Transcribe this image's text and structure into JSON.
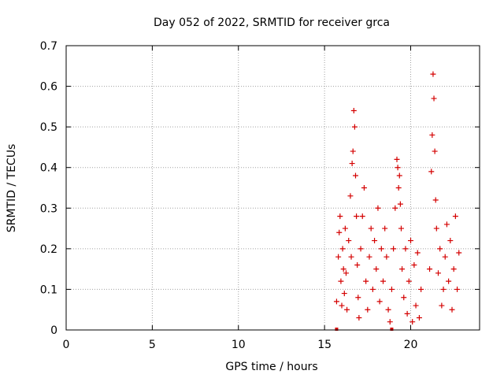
{
  "chart_data": {
    "type": "scatter",
    "title": "Day 052 of 2022, SRMTID for receiver grca",
    "xlabel": "GPS time / hours",
    "ylabel": "SRMTID / TECUs",
    "xlim": [
      0,
      24
    ],
    "ylim": [
      0,
      0.7
    ],
    "x_ticks": [
      "0",
      "5",
      "10",
      "15",
      "20"
    ],
    "y_ticks": [
      "0",
      "0.1",
      "0.2",
      "0.3",
      "0.4",
      "0.5",
      "0.6",
      "0.7"
    ],
    "grid": true,
    "marker": "plus",
    "color": "#d40000",
    "series": [
      {
        "x": [
          15.7,
          15.8,
          15.85,
          15.9,
          15.95,
          16.0,
          16.05,
          16.1,
          16.15,
          16.2,
          16.25,
          16.3,
          16.4,
          16.5,
          16.55,
          16.6,
          16.65,
          16.7,
          16.75,
          16.8,
          16.85,
          16.9,
          16.95,
          17.0,
          17.1,
          17.2,
          17.3,
          17.4,
          17.5,
          17.6,
          17.7,
          17.8,
          17.9,
          18.0,
          18.1,
          18.2,
          18.3,
          18.4,
          18.5,
          18.6,
          18.7,
          18.8,
          18.9,
          19.0,
          19.1,
          19.2,
          19.25,
          19.3,
          19.35,
          19.4,
          19.45,
          19.5,
          19.6,
          19.7,
          19.8,
          19.9,
          20.0,
          20.1,
          20.2,
          20.3,
          20.4,
          20.5,
          20.6,
          21.1,
          21.2,
          21.25,
          21.3,
          21.35,
          21.4,
          21.45,
          21.5,
          21.6,
          21.7,
          21.8,
          21.9,
          22.0,
          22.1,
          22.2,
          22.3,
          22.4,
          22.5,
          22.6,
          22.7,
          22.8
        ],
        "y": [
          0.07,
          0.18,
          0.24,
          0.28,
          0.12,
          0.06,
          0.2,
          0.15,
          0.09,
          0.25,
          0.14,
          0.05,
          0.22,
          0.33,
          0.18,
          0.41,
          0.44,
          0.54,
          0.5,
          0.38,
          0.28,
          0.16,
          0.08,
          0.03,
          0.2,
          0.28,
          0.35,
          0.12,
          0.05,
          0.18,
          0.25,
          0.1,
          0.22,
          0.15,
          0.3,
          0.07,
          0.2,
          0.12,
          0.25,
          0.18,
          0.05,
          0.02,
          0.1,
          0.2,
          0.3,
          0.42,
          0.4,
          0.35,
          0.38,
          0.31,
          0.25,
          0.15,
          0.08,
          0.2,
          0.04,
          0.12,
          0.22,
          0.02,
          0.16,
          0.06,
          0.19,
          0.03,
          0.1,
          0.15,
          0.39,
          0.48,
          0.63,
          0.57,
          0.44,
          0.32,
          0.25,
          0.14,
          0.2,
          0.06,
          0.1,
          0.18,
          0.26,
          0.12,
          0.22,
          0.05,
          0.15,
          0.28,
          0.1,
          0.19
        ]
      }
    ],
    "baseline_markers": [
      15.7,
      18.9
    ]
  }
}
